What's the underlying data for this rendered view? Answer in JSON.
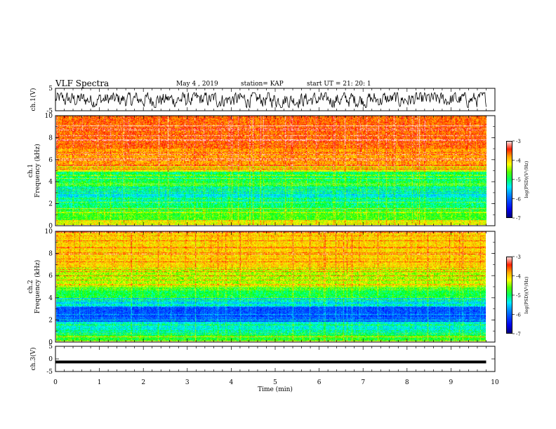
{
  "header": {
    "title": "VLF Spectra",
    "date": "May 4 , 2019",
    "station": "station= KAP",
    "start_ut": "start UT = 21: 20: 1"
  },
  "colors": {
    "spectrum": [
      "#000080",
      "#0000ff",
      "#0080ff",
      "#00ffff",
      "#00ff00",
      "#ffff00",
      "#ff8000",
      "#ff0000",
      "#ffffff"
    ]
  },
  "chart_data": [
    {
      "type": "line",
      "panel": "ch.1 waveform",
      "ylabel": "ch.1(V)",
      "ylim": [
        -5,
        5
      ],
      "yticks": [
        "5",
        "-5"
      ],
      "xlim": [
        0,
        10
      ],
      "note_values": "noisy waveform spanning roughly -3.5 to 3 V over 0–9.8 min"
    },
    {
      "type": "heatmap",
      "panel": "ch.1 spectrogram",
      "ylabel_line1": "ch.1",
      "ylabel_line2": "Frequency (kHz)",
      "ylim": [
        0,
        10
      ],
      "yticks": [
        "10",
        "8",
        "6",
        "4",
        "2",
        "0"
      ],
      "xlim": [
        0,
        9.8
      ],
      "bands": [
        {
          "f0": 0,
          "f1": 0.5,
          "level": -4.2
        },
        {
          "f0": 0.5,
          "f1": 1.2,
          "level": -4.7
        },
        {
          "f0": 1.2,
          "f1": 2.0,
          "level": -5.0
        },
        {
          "f0": 2.0,
          "f1": 2.6,
          "level": -5.2
        },
        {
          "f0": 2.6,
          "f1": 3.5,
          "level": -5.4
        },
        {
          "f0": 3.5,
          "f1": 4.9,
          "level": -5.0
        },
        {
          "f0": 4.9,
          "f1": 5.5,
          "level": -4.2
        },
        {
          "f0": 5.5,
          "f1": 7.0,
          "level": -3.8
        },
        {
          "f0": 7.0,
          "f1": 10.0,
          "level": -3.6
        }
      ],
      "colorbar": {
        "label": "log(PSD)(V²/Hz)",
        "range": [
          -7,
          -3
        ],
        "ticks": [
          "-3",
          "-4",
          "-5",
          "-6",
          "-7"
        ]
      }
    },
    {
      "type": "heatmap",
      "panel": "ch.2 spectrogram",
      "ylabel_line1": "ch.2",
      "ylabel_line2": "Frequency (kHz)",
      "ylim": [
        0,
        10
      ],
      "yticks": [
        "10",
        "8",
        "6",
        "4",
        "2",
        "0"
      ],
      "xlim": [
        0,
        9.8
      ],
      "bands": [
        {
          "f0": 0,
          "f1": 0.6,
          "level": -4.8
        },
        {
          "f0": 0.6,
          "f1": 1.8,
          "level": -5.3
        },
        {
          "f0": 1.8,
          "f1": 3.2,
          "level": -6.1
        },
        {
          "f0": 3.2,
          "f1": 4.0,
          "level": -5.5
        },
        {
          "f0": 4.0,
          "f1": 5.0,
          "level": -4.9
        },
        {
          "f0": 5.0,
          "f1": 6.8,
          "level": -4.4
        },
        {
          "f0": 6.8,
          "f1": 10.0,
          "level": -4.0
        }
      ],
      "colorbar": {
        "label": "log(PSD)(V²/Hz)",
        "range": [
          -7,
          -3
        ],
        "ticks": [
          "-3",
          "-4",
          "-5",
          "-6",
          "-7"
        ]
      }
    },
    {
      "type": "line",
      "panel": "ch.3 waveform",
      "ylabel": "ch.3(V)",
      "ylim": [
        -5,
        5
      ],
      "yticks": [
        "5",
        "0",
        "-5"
      ],
      "xlim": [
        0,
        10
      ],
      "values_y": [
        -1.2,
        -1.2
      ],
      "x": [
        0,
        9.8
      ]
    }
  ],
  "xaxis": {
    "label": "Time (min)",
    "ticks": [
      "0",
      "1",
      "2",
      "3",
      "4",
      "5",
      "6",
      "7",
      "8",
      "9",
      "10"
    ]
  }
}
